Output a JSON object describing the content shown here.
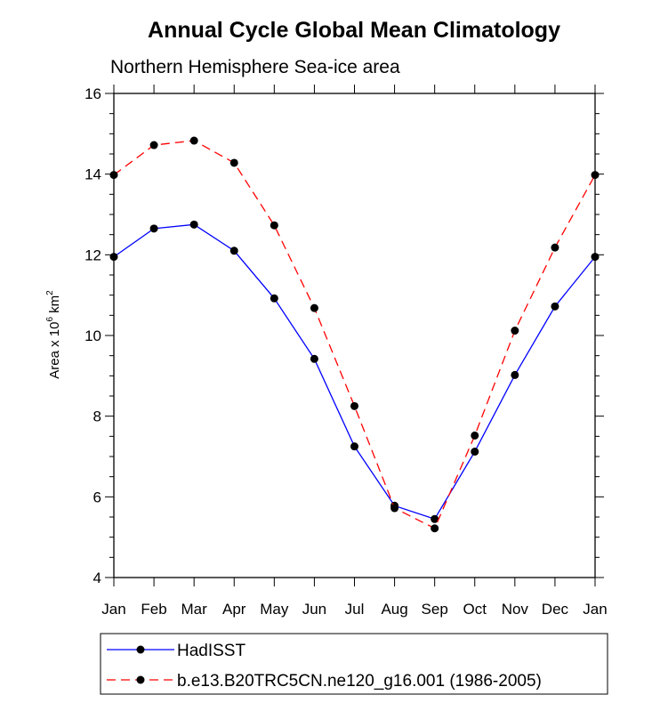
{
  "chart_data": {
    "type": "line",
    "title": "Annual Cycle Global Mean Climatology",
    "subtitle": "Northern Hemisphere Sea-ice area",
    "ylabel": {
      "prefix": "Area x 10",
      "exponent": "6",
      "unit": " km",
      "unit_exponent": "2"
    },
    "categories": [
      "Jan",
      "Feb",
      "Mar",
      "Apr",
      "May",
      "Jun",
      "Jul",
      "Aug",
      "Sep",
      "Oct",
      "Nov",
      "Dec",
      "Jan"
    ],
    "ylim": [
      4,
      16
    ],
    "yticks": [
      4,
      6,
      8,
      10,
      12,
      14,
      16
    ],
    "ytick_labels": [
      "4",
      "6",
      "8",
      "10",
      "12",
      "14",
      "16"
    ],
    "series": [
      {
        "name": "HadISST",
        "color": "#0000ff",
        "dash": "solid",
        "values": [
          11.95,
          12.65,
          12.75,
          12.1,
          10.92,
          9.42,
          7.25,
          5.78,
          5.45,
          7.12,
          9.02,
          10.72,
          11.95
        ]
      },
      {
        "name": "b.e13.B20TRC5CN.ne120_g16.001 (1986-2005)",
        "color": "#ff0000",
        "dash": "dashed",
        "values": [
          13.98,
          14.72,
          14.83,
          14.28,
          12.73,
          10.68,
          8.25,
          5.72,
          5.22,
          7.52,
          10.12,
          12.18,
          13.98
        ]
      }
    ],
    "legend_placement": "bottom"
  }
}
